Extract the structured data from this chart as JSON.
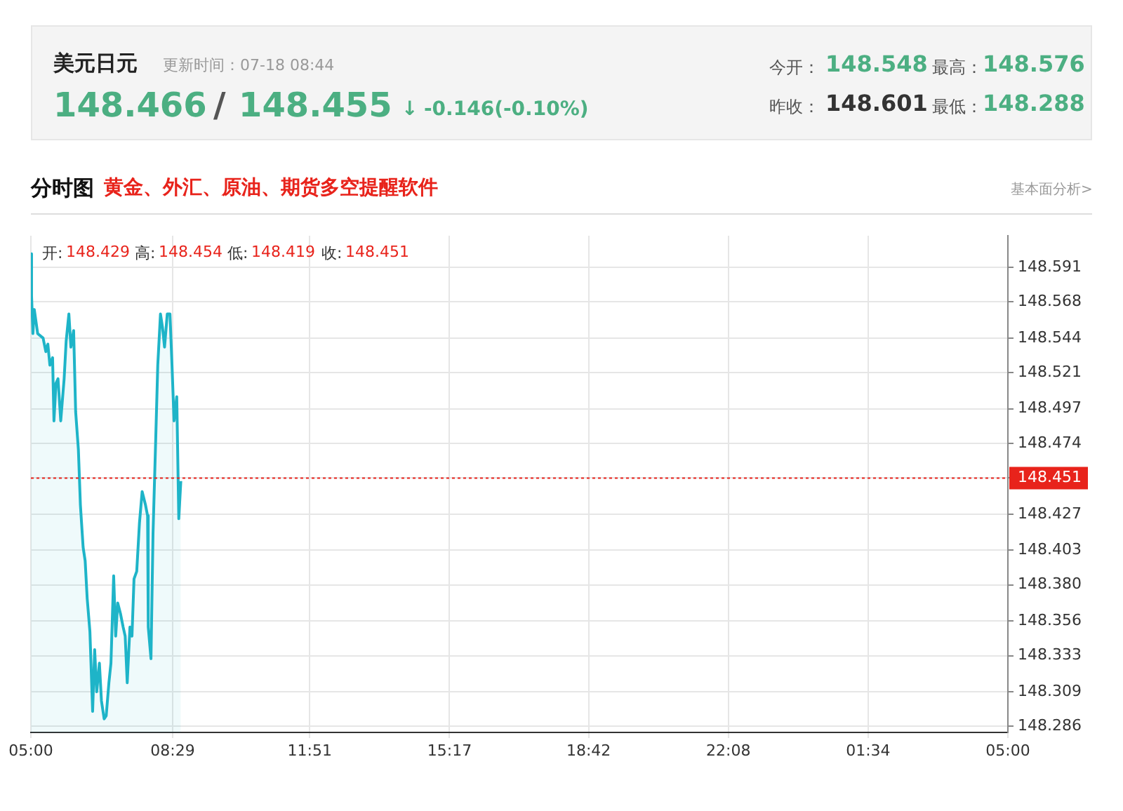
{
  "chart_data": {
    "type": "area",
    "title": "美元日元",
    "annotations": [
      "更新时间：07-18 08:44",
      "148.466",
      "/",
      "148.455",
      "↓",
      "-0.146(-0.10%)",
      "今开：",
      "148.548",
      "最高：",
      "148.576",
      "昨收：",
      "148.601",
      "最低：",
      "148.288",
      "分时图",
      "黄金、外汇、原油、期货多空提醒软件",
      "基本面分析>",
      "开:",
      "148.429",
      "高:",
      "148.454",
      "低:",
      "148.419",
      "收:",
      "148.451"
    ],
    "xlim": [
      "--07-18T05:00",
      "--07-19T05:00"
    ],
    "xticks": [
      {
        "value": "--07-18T05:00",
        "label": "05:00"
      },
      {
        "value": "--07-18T08:29",
        "label": "08:29"
      },
      {
        "value": "--07-18T11:51",
        "label": "11:51"
      },
      {
        "value": "--07-18T15:17",
        "label": "15:17"
      },
      {
        "value": "--07-18T18:42",
        "label": "18:42"
      },
      {
        "value": "--07-18T22:08",
        "label": "22:08"
      },
      {
        "value": "--07-19T01:34",
        "label": "01:34"
      },
      {
        "value": "--07-19T05:00",
        "label": "05:00"
      }
    ],
    "ylim": [
      148.282,
      148.612
    ],
    "yticks": [
      148.286,
      148.309,
      148.333,
      148.356,
      {
        "value": 148.38,
        "label": "148.380"
      },
      148.403,
      148.427,
      148.451,
      148.474,
      148.497,
      148.521,
      148.544,
      148.568,
      148.591
    ],
    "grid": true,
    "legend": false,
    "marker": "none",
    "ref_lines": [
      {
        "axis": "y",
        "value": 148.451,
        "label": "148.451",
        "color": "#e8231b",
        "line_style": "dotted"
      }
    ],
    "series": [
      {
        "color": "#1eb4c8",
        "x": [
          "--07-18T05:00",
          "--07-18T05:01",
          "--07-18T05:03",
          "--07-18T05:05",
          "--07-18T05:10",
          "--07-18T05:18",
          "--07-18T05:22",
          "--07-18T05:25",
          "--07-18T05:28",
          "--07-18T05:32",
          "--07-18T05:34",
          "--07-18T05:37",
          "--07-18T05:40",
          "--07-18T05:44",
          "--07-18T05:49",
          "--07-18T05:52",
          "--07-18T05:56",
          "--07-18T05:59",
          "--07-18T06:03",
          "--07-18T06:06",
          "--07-18T06:10",
          "--07-18T06:13",
          "--07-18T06:17",
          "--07-18T06:20",
          "--07-18T06:23",
          "--07-18T06:27",
          "--07-18T06:31",
          "--07-18T06:34",
          "--07-18T06:37",
          "--07-18T06:41",
          "--07-18T06:44",
          "--07-18T06:48",
          "--07-18T06:51",
          "--07-18T06:55",
          "--07-18T06:58",
          "--07-18T07:02",
          "--07-18T07:05",
          "--07-18T07:08",
          "--07-18T07:12",
          "--07-18T07:16",
          "--07-18T07:19",
          "--07-18T07:22",
          "--07-18T07:26",
          "--07-18T07:29",
          "--07-18T07:32",
          "--07-18T07:36",
          "--07-18T07:40",
          "--07-18T07:44",
          "--07-18T07:49",
          "--07-18T07:52",
          "--07-18T07:53",
          "--07-18T07:57",
          "--07-18T08:00",
          "--07-18T08:04",
          "--07-18T08:07",
          "--07-18T08:11",
          "--07-18T08:14",
          "--07-18T08:17",
          "--07-18T08:21",
          "--07-18T08:25",
          "--07-18T08:28",
          "--07-18T08:31",
          "--07-18T08:35",
          "--07-18T08:38",
          "--07-18T08:41"
        ],
        "values": [
          148.6,
          148.572,
          148.547,
          148.563,
          148.547,
          148.544,
          148.535,
          148.54,
          148.526,
          148.531,
          148.489,
          148.514,
          148.517,
          148.489,
          148.517,
          148.542,
          148.56,
          148.538,
          148.549,
          148.495,
          148.47,
          148.433,
          148.405,
          148.396,
          148.371,
          148.349,
          148.296,
          148.337,
          148.309,
          148.328,
          148.303,
          148.291,
          148.293,
          148.315,
          148.328,
          148.386,
          148.346,
          148.368,
          148.361,
          148.352,
          148.346,
          148.315,
          148.352,
          148.346,
          148.384,
          148.389,
          148.421,
          148.442,
          148.433,
          148.426,
          148.352,
          148.331,
          148.414,
          148.477,
          148.526,
          148.56,
          148.551,
          148.538,
          148.56,
          148.56,
          148.526,
          148.489,
          148.505,
          148.424,
          148.449
        ]
      }
    ]
  }
}
